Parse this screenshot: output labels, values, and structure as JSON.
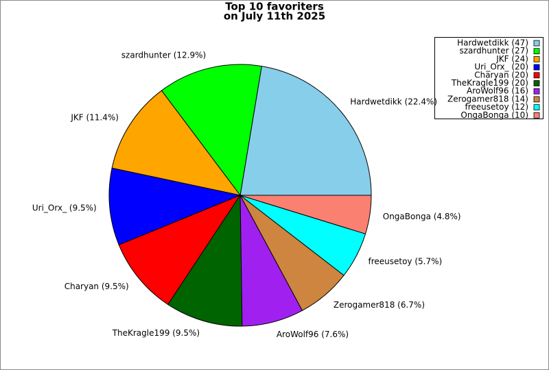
{
  "chart_data": {
    "type": "pie",
    "title": "Top 10 favoriters",
    "subtitle": "on July 11th 2025",
    "values": [
      47,
      27,
      24,
      20,
      20,
      20,
      16,
      14,
      12,
      10
    ],
    "labels": [
      "Hardwetdikk (22.4%)",
      "szardhunter (12.9%)",
      "JKF (11.4%)",
      "Uri_Orx_ (9.5%)",
      "Charyan (9.5%)",
      "TheKragle199 (9.5%)",
      "AroWolf96 (7.6%)",
      "Zerogamer818 (6.7%)",
      "freeusetoy (5.7%)",
      "OngaBonga (4.8%)"
    ],
    "legend_labels": [
      "Hardwetdikk (47)",
      "szardhunter (27)",
      "JKF (24)",
      "Uri_Orx_ (20)",
      "Charyan (20)",
      "TheKragle199 (20)",
      "AroWolf96 (16)",
      "Zerogamer818 (14)",
      "freeusetoy (12)",
      "OngaBonga (10)"
    ],
    "colors": [
      "#87ceeb",
      "#00ff00",
      "#ffa500",
      "#0000ff",
      "#ff0000",
      "#006400",
      "#a020f0",
      "#cd853f",
      "#00ffff",
      "#fa8072"
    ],
    "legend": "upper right"
  }
}
